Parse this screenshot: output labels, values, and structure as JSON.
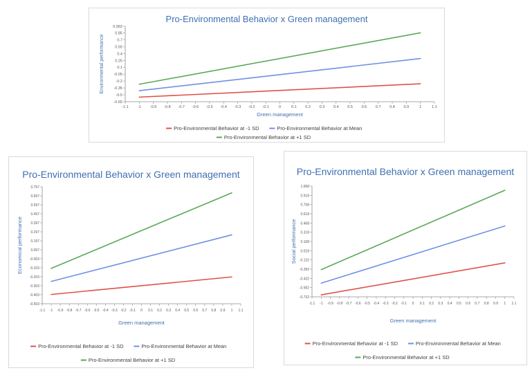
{
  "chart_data": [
    {
      "type": "line",
      "title": "Pro-Environmental Behavior x Green management",
      "xlabel": "Green management",
      "ylabel": "Environmental performance",
      "x": [
        -1,
        1
      ],
      "xlim": [
        -1.1,
        1.1
      ],
      "x_ticks": [
        "-1.1",
        "-1",
        "-0.9",
        "-0.8",
        "-0.7",
        "-0.6",
        "-0.5",
        "-0.4",
        "-0.3",
        "-0.2",
        "-0.1",
        "0",
        "0.1",
        "0.2",
        "0.3",
        "0.4",
        "0.5",
        "0.6",
        "0.7",
        "0.8",
        "0.9",
        "1",
        "1.1"
      ],
      "ylim": [
        -0.65,
        0.992
      ],
      "y_ticks": [
        "0.992",
        "0.85",
        "0.7",
        "0.55",
        "0.4",
        "0.25",
        "0.1",
        "-0.05",
        "-0.2",
        "-0.35",
        "-0.5",
        "-0.65"
      ],
      "series": [
        {
          "name": "Pro-Environmental Behavior at -1 SD",
          "color": "#e0504a",
          "values": [
            -0.55,
            -0.26
          ]
        },
        {
          "name": "Pro-Environmental Behavior at Mean",
          "color": "#6f8fe3",
          "values": [
            -0.41,
            0.29
          ]
        },
        {
          "name": "Pro-Environmental Behavior at +1 SD",
          "color": "#5aa857",
          "values": [
            -0.27,
            0.85
          ]
        }
      ],
      "grid": false,
      "legend": "bottom"
    },
    {
      "type": "line",
      "title": "Pro-Environmental Behavior x Green management",
      "xlabel": "Green management",
      "ylabel": "Economical performance",
      "x": [
        -1,
        1
      ],
      "xlim": [
        -1.1,
        1.1
      ],
      "x_ticks": [
        "-1.1",
        "-1",
        "-0.9",
        "-0.8",
        "-0.7",
        "-0.6",
        "-0.5",
        "-0.4",
        "-0.3",
        "-0.2",
        "-0.1",
        "0",
        "0.1",
        "0.2",
        "0.3",
        "0.4",
        "0.5",
        "0.6",
        "0.7",
        "0.8",
        "0.9",
        "1",
        "1.1"
      ],
      "ylim": [
        -0.503,
        0.797
      ],
      "y_ticks": [
        "0.797",
        "0.697",
        "0.597",
        "0.497",
        "0.397",
        "0.297",
        "0.197",
        "0.097",
        "-0.003",
        "-0.103",
        "-0.203",
        "-0.303",
        "-0.403",
        "-0.503"
      ],
      "series": [
        {
          "name": "Pro-Environmental Behavior at -1 SD",
          "color": "#e0504a",
          "values": [
            -0.4,
            -0.205
          ]
        },
        {
          "name": "Pro-Environmental Behavior at Mean",
          "color": "#6f8fe3",
          "values": [
            -0.255,
            0.263
          ]
        },
        {
          "name": "Pro-Environmental Behavior at +1 SD",
          "color": "#5aa857",
          "values": [
            -0.11,
            0.73
          ]
        }
      ],
      "grid": false,
      "legend": "bottom"
    },
    {
      "type": "line",
      "title": "Pro-Environmental Behavior x Green management",
      "xlabel": "Green management",
      "ylabel": "Social performance",
      "x": [
        -1,
        1
      ],
      "xlim": [
        -1.1,
        1.1
      ],
      "x_ticks": [
        "-1.1",
        "-1",
        "-0.9",
        "-0.8",
        "-0.7",
        "-0.6",
        "-0.5",
        "-0.4",
        "-0.3",
        "-0.2",
        "-0.1",
        "0",
        "0.1",
        "0.2",
        "0.3",
        "0.4",
        "0.5",
        "0.6",
        "0.7",
        "0.8",
        "0.9",
        "1",
        "1.1"
      ],
      "ylim": [
        -0.732,
        1.068
      ],
      "y_ticks": [
        "1.068",
        "0.918",
        "0.768",
        "0.618",
        "0.468",
        "0.318",
        "0.168",
        "0.018",
        "-0.132",
        "-0.282",
        "-0.432",
        "-0.582",
        "-0.732"
      ],
      "series": [
        {
          "name": "Pro-Environmental Behavior at -1 SD",
          "color": "#e0504a",
          "values": [
            -0.7,
            -0.18
          ]
        },
        {
          "name": "Pro-Environmental Behavior at Mean",
          "color": "#6f8fe3",
          "values": [
            -0.51,
            0.42
          ]
        },
        {
          "name": "Pro-Environmental Behavior at +1 SD",
          "color": "#5aa857",
          "values": [
            -0.29,
            1.0
          ]
        }
      ],
      "grid": false,
      "legend": "bottom"
    }
  ]
}
